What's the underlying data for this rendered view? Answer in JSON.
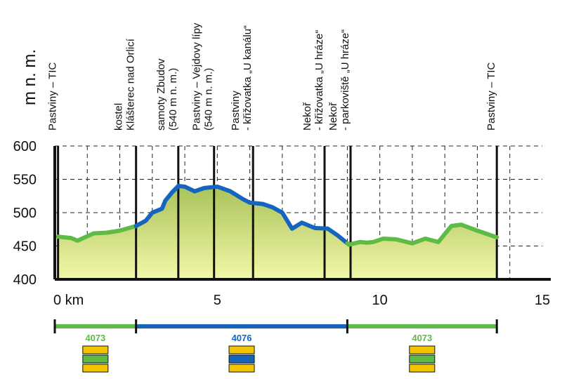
{
  "chart_data": {
    "type": "area",
    "ylabel": "m n. m.",
    "xunit": "km",
    "xlim": [
      0,
      15
    ],
    "ylim": [
      400,
      600
    ],
    "xticks": [
      0,
      5,
      10,
      15
    ],
    "xtick_labels": [
      "0 km",
      "5",
      "10",
      "15"
    ],
    "yticks": [
      400,
      450,
      500,
      550,
      600
    ],
    "grid": true,
    "colors": {
      "green": "#5dbb46",
      "blue": "#1565c0",
      "yellow": "#f5c400",
      "fill_top": "#a9c35a",
      "fill_bottom": "#f3f7a8"
    },
    "profile": [
      [
        0.1,
        464
      ],
      [
        0.5,
        462
      ],
      [
        0.7,
        458
      ],
      [
        1.2,
        469
      ],
      [
        1.6,
        470
      ],
      [
        2.0,
        473
      ],
      [
        2.5,
        480
      ],
      [
        2.8,
        488
      ],
      [
        3.0,
        500
      ],
      [
        3.3,
        506
      ],
      [
        3.4,
        518
      ],
      [
        3.6,
        530
      ],
      [
        3.8,
        540
      ],
      [
        4.0,
        539
      ],
      [
        4.3,
        532
      ],
      [
        4.6,
        537
      ],
      [
        5.0,
        539
      ],
      [
        5.4,
        532
      ],
      [
        5.8,
        520
      ],
      [
        6.0,
        515
      ],
      [
        6.4,
        513
      ],
      [
        6.7,
        508
      ],
      [
        7.0,
        500
      ],
      [
        7.3,
        476
      ],
      [
        7.6,
        485
      ],
      [
        8.0,
        477
      ],
      [
        8.4,
        476
      ],
      [
        8.7,
        466
      ],
      [
        9.05,
        452
      ],
      [
        9.4,
        456
      ],
      [
        9.6,
        455
      ],
      [
        9.8,
        456
      ],
      [
        10.1,
        461
      ],
      [
        10.5,
        460
      ],
      [
        11.0,
        454
      ],
      [
        11.4,
        461
      ],
      [
        11.8,
        456
      ],
      [
        12.2,
        480
      ],
      [
        12.5,
        482
      ],
      [
        13.0,
        473
      ],
      [
        13.6,
        463
      ]
    ],
    "segments": [
      {
        "route": "4073",
        "from": 0,
        "to": 2.5,
        "color": "#5dbb46"
      },
      {
        "route": "4076",
        "from": 2.5,
        "to": 9.0,
        "color": "#1565c0"
      },
      {
        "route": "4073",
        "from": 9.0,
        "to": 13.6,
        "color": "#5dbb46"
      }
    ],
    "waypoints": [
      {
        "x": 0.1,
        "lines": [
          "Pastviny – TIC"
        ]
      },
      {
        "x": 2.5,
        "lines": [
          "kostel",
          "Klášterec nad Orlicí"
        ]
      },
      {
        "x": 3.8,
        "lines": [
          "samoty Zbudov",
          "(540 m n. m.)"
        ]
      },
      {
        "x": 4.9,
        "lines": [
          "Pastviny – Vejdovy lípy",
          "(540 m n. m.)"
        ]
      },
      {
        "x": 6.1,
        "lines": [
          "Pastviny",
          "- křižovatka „U kanálu“"
        ]
      },
      {
        "x": 8.3,
        "lines": [
          "Nekoř",
          "- křižovatka „U hráze“"
        ]
      },
      {
        "x": 9.1,
        "lines": [
          "Nekoř",
          "- parkoviště „U hráze“"
        ]
      },
      {
        "x": 13.6,
        "lines": [
          "Pastviny – TIC"
        ]
      }
    ],
    "routes": [
      {
        "number": "4073",
        "number_color": "#5dbb46",
        "marker": [
          "#f5c400",
          "#5dbb46",
          "#f5c400"
        ],
        "center_x": 1.25
      },
      {
        "number": "4076",
        "number_color": "#1565c0",
        "marker": [
          "#f5c400",
          "#1565c0",
          "#f5c400"
        ],
        "center_x": 5.75
      },
      {
        "number": "4073",
        "number_color": "#5dbb46",
        "marker": [
          "#f5c400",
          "#5dbb46",
          "#f5c400"
        ],
        "center_x": 11.3
      }
    ]
  }
}
